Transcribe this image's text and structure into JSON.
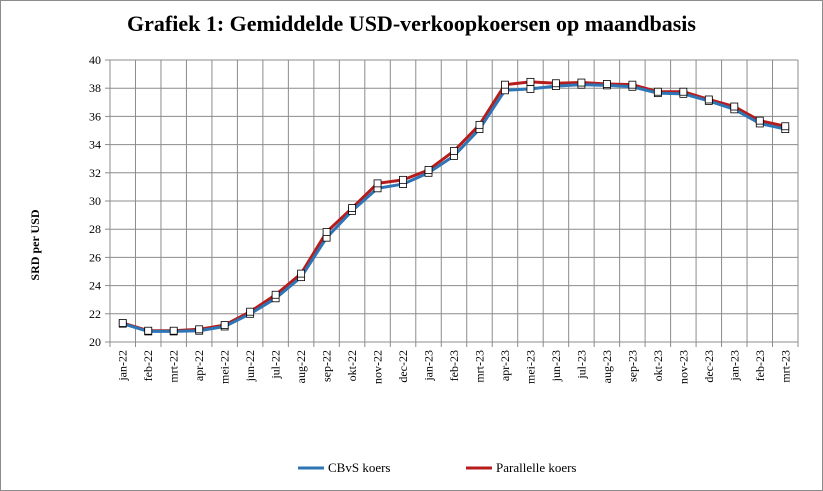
{
  "chart_data": {
    "type": "line",
    "title": "Grafiek 1: Gemiddelde USD-verkoopkoersen op maandbasis",
    "xlabel": "",
    "ylabel": "SRD per USD",
    "ylim": [
      20,
      40
    ],
    "yticks": [
      20,
      22,
      24,
      26,
      28,
      30,
      32,
      34,
      36,
      38,
      40
    ],
    "grid": true,
    "legend": "bottom",
    "categories": [
      "jan-22",
      "feb-22",
      "mrt-22",
      "apr-22",
      "mei-22",
      "jun-22",
      "jul-22",
      "aug-22",
      "sep-22",
      "okt-22",
      "nov-22",
      "dec-22",
      "jan-23",
      "feb-23",
      "mrt-23",
      "apr-23",
      "mei-23",
      "jun-23",
      "jul-23",
      "aug-23",
      "sep-23",
      "okt-23",
      "nov-23",
      "dec-23",
      "jan-23",
      "feb-23",
      "mrt-23"
    ],
    "series": [
      {
        "name": "CBvS koers",
        "color": "#2e75b6",
        "values": [
          21.3,
          20.75,
          20.75,
          20.8,
          21.1,
          22.0,
          23.1,
          24.6,
          27.4,
          29.3,
          30.9,
          31.2,
          32.0,
          33.2,
          35.1,
          37.85,
          37.95,
          38.15,
          38.25,
          38.2,
          38.1,
          37.65,
          37.6,
          37.1,
          36.5,
          35.5,
          35.1
        ]
      },
      {
        "name": "Parallelle koers",
        "color": "#b71c1c",
        "values": [
          21.35,
          20.8,
          20.8,
          20.9,
          21.2,
          22.15,
          23.35,
          24.85,
          27.8,
          29.5,
          31.25,
          31.5,
          32.2,
          33.55,
          35.4,
          38.25,
          38.45,
          38.35,
          38.4,
          38.3,
          38.25,
          37.75,
          37.75,
          37.2,
          36.7,
          35.7,
          35.3
        ]
      }
    ]
  }
}
